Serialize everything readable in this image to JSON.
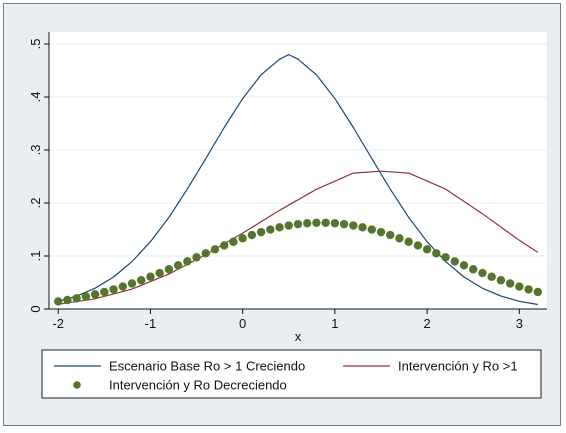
{
  "chart_data": {
    "type": "line",
    "title": "",
    "xlabel": "x",
    "ylabel": "",
    "xlim": [
      -2,
      3.2
    ],
    "ylim": [
      0,
      0.5
    ],
    "x_ticks": [
      -2,
      -1,
      0,
      1,
      2,
      3
    ],
    "x_tick_labels": [
      "-2",
      "-1",
      "0",
      "1",
      "2",
      "3"
    ],
    "y_ticks": [
      0,
      0.1,
      0.2,
      0.3,
      0.4,
      0.5
    ],
    "y_tick_labels": [
      "0",
      ".1",
      ".2",
      ".3",
      ".4",
      ".5"
    ],
    "grid": "horizontal",
    "legend_position": "bottom",
    "series": [
      {
        "name": "Escenario Base Ro > 1 Creciendo",
        "style": "line",
        "color": "#1a476f",
        "x": [
          -2.0,
          -1.8,
          -1.6,
          -1.4,
          -1.2,
          -1.0,
          -0.8,
          -0.6,
          -0.4,
          -0.2,
          0.0,
          0.2,
          0.4,
          0.5,
          0.6,
          0.8,
          1.0,
          1.2,
          1.4,
          1.6,
          1.8,
          2.0,
          2.2,
          2.4,
          2.6,
          2.8,
          3.0,
          3.2
        ],
        "y": [
          0.0146,
          0.0244,
          0.0392,
          0.0604,
          0.0894,
          0.1269,
          0.1729,
          0.2262,
          0.2838,
          0.3425,
          0.397,
          0.4418,
          0.4713,
          0.48,
          0.4713,
          0.4418,
          0.397,
          0.3425,
          0.2838,
          0.2262,
          0.1729,
          0.1269,
          0.0894,
          0.0604,
          0.0392,
          0.0244,
          0.0146,
          0.0084
        ]
      },
      {
        "name": "Intervención y Ro >1",
        "style": "line",
        "color": "#90353b",
        "x": [
          -2.0,
          -1.6,
          -1.2,
          -0.8,
          -0.4,
          0.0,
          0.4,
          0.8,
          1.2,
          1.5,
          1.8,
          2.2,
          2.6,
          3.0,
          3.2
        ],
        "y": [
          0.0088,
          0.0193,
          0.0376,
          0.0658,
          0.1027,
          0.1432,
          0.1863,
          0.2258,
          0.2564,
          0.26,
          0.2564,
          0.2262,
          0.1799,
          0.1296,
          0.1067
        ]
      },
      {
        "name": "Intervención y Ro Decreciendo",
        "style": "dots",
        "color": "#55752f",
        "x": [
          -2.0,
          -1.9,
          -1.8,
          -1.7,
          -1.6,
          -1.5,
          -1.4,
          -1.3,
          -1.2,
          -1.1,
          -1.0,
          -0.9,
          -0.8,
          -0.7,
          -0.6,
          -0.5,
          -0.4,
          -0.3,
          -0.2,
          -0.1,
          0.0,
          0.1,
          0.2,
          0.3,
          0.4,
          0.5,
          0.6,
          0.7,
          0.8,
          0.9,
          1.0,
          1.1,
          1.2,
          1.3,
          1.4,
          1.5,
          1.6,
          1.7,
          1.8,
          1.9,
          2.0,
          2.1,
          2.2,
          2.3,
          2.4,
          2.5,
          2.6,
          2.7,
          2.8,
          2.9,
          3.0,
          3.1,
          3.2
        ],
        "y": [
          0.0143,
          0.017,
          0.0201,
          0.0237,
          0.0276,
          0.0321,
          0.037,
          0.0423,
          0.0481,
          0.0543,
          0.0609,
          0.0678,
          0.075,
          0.0824,
          0.0899,
          0.0976,
          0.1051,
          0.1126,
          0.1199,
          0.1269,
          0.1334,
          0.1395,
          0.145,
          0.1499,
          0.1541,
          0.1575,
          0.1601,
          0.1618,
          0.1627,
          0.1627,
          0.1618,
          0.1601,
          0.1575,
          0.1541,
          0.1499,
          0.145,
          0.1395,
          0.1334,
          0.1269,
          0.1199,
          0.1126,
          0.1051,
          0.0976,
          0.0899,
          0.0824,
          0.075,
          0.0678,
          0.0609,
          0.0543,
          0.0481,
          0.0423,
          0.037,
          0.0321
        ]
      }
    ]
  }
}
